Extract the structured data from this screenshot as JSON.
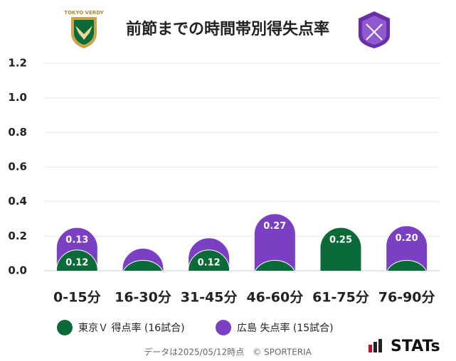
{
  "chart_data": {
    "type": "stacked-pill-bar",
    "title": "前節までの時間帯別得失点率",
    "categories": [
      "0-15分",
      "16-30分",
      "31-45分",
      "46-60分",
      "61-75分",
      "76-90分"
    ],
    "series": [
      {
        "name": "東京Ｖ 得点率 (16試合)",
        "color": "#0b6b38",
        "values": [
          0.12,
          0.06,
          0.12,
          0.06,
          0.25,
          0.06
        ],
        "value_labels": [
          "0.12",
          null,
          "0.12",
          null,
          "0.25",
          null
        ]
      },
      {
        "name": "広島 失点率 (15試合)",
        "color": "#7a3fc2",
        "values": [
          0.13,
          0.07,
          0.07,
          0.27,
          0,
          0.2
        ],
        "value_labels": [
          "0.13",
          null,
          null,
          "0.27",
          null,
          "0.20"
        ]
      }
    ],
    "ylim": [
      0,
      1.2
    ],
    "yticks": [
      {
        "value": 0,
        "label": "0.0"
      },
      0.2,
      0.4,
      0.6,
      0.8,
      {
        "value": 1,
        "label": "1.0"
      },
      1.2
    ],
    "grid": true,
    "footer": "データは2025/05/12時点　© SPORTERIA",
    "brand": "STATs",
    "team_logo_text": "TOKYO VERDY"
  }
}
